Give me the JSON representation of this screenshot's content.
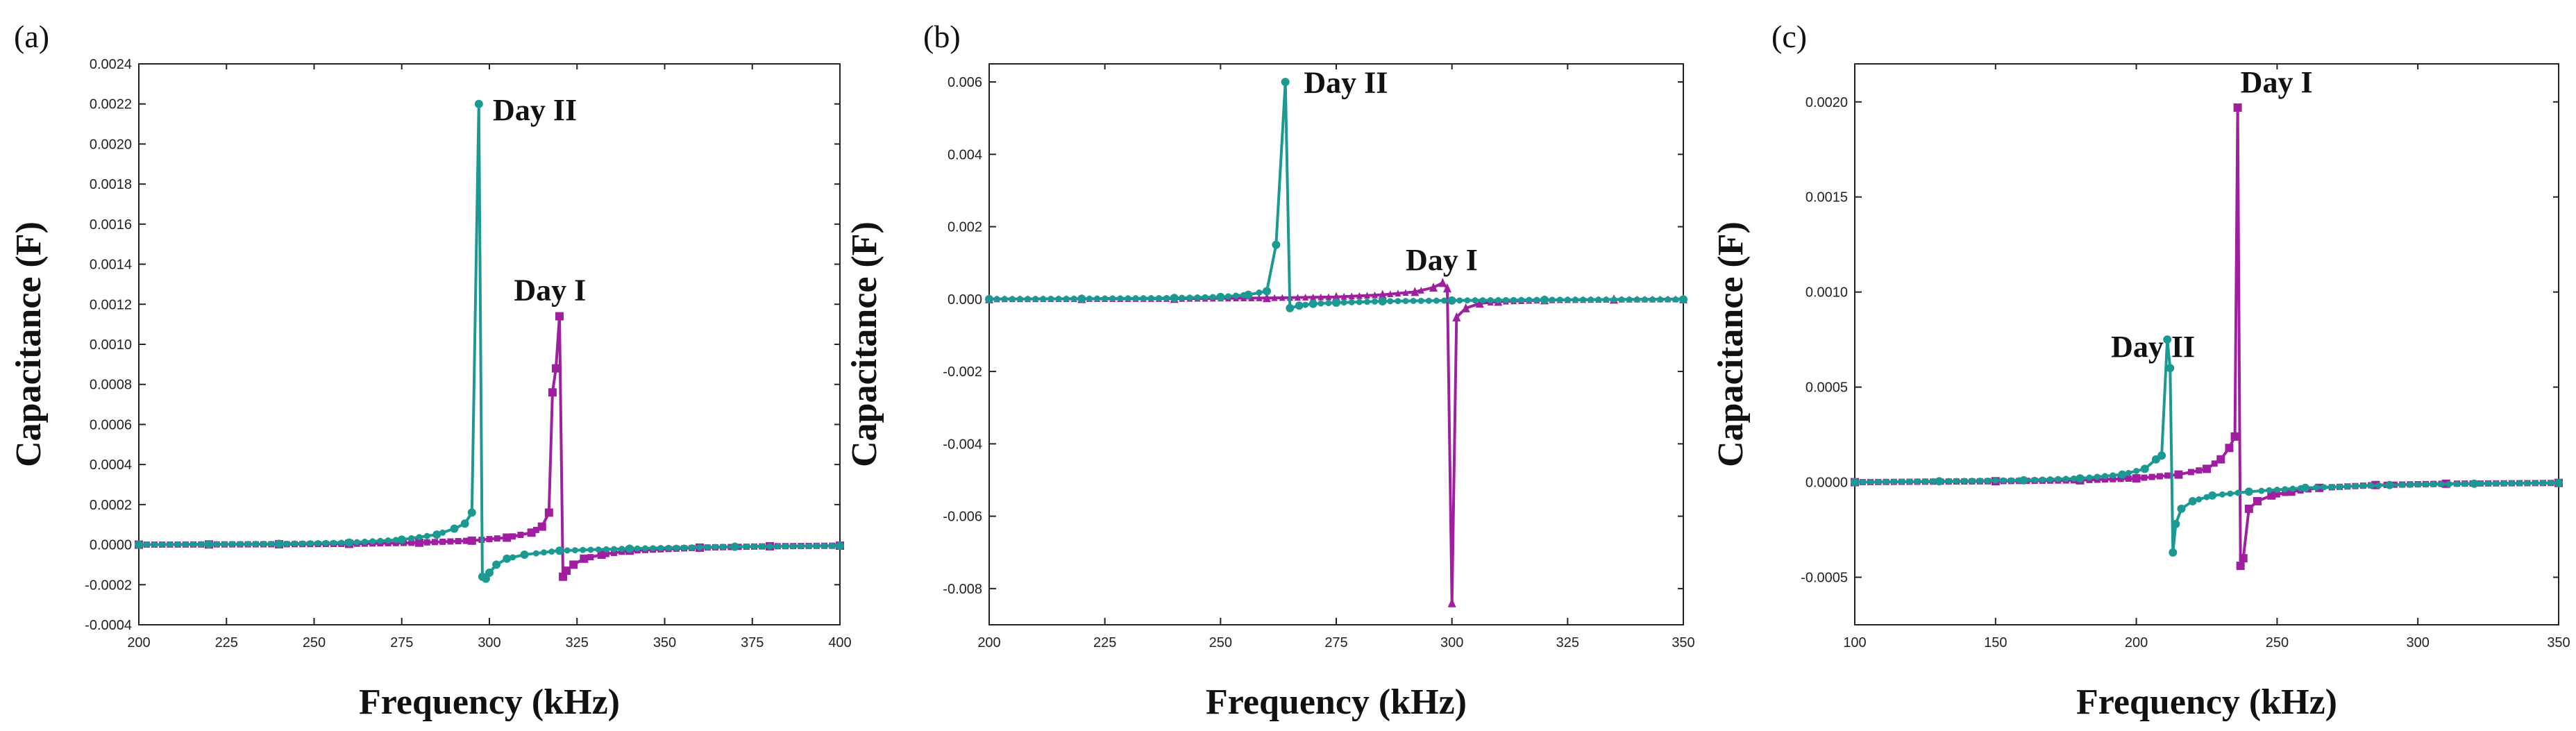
{
  "colors": {
    "day1": "#a01fa0",
    "day2": "#1a9a92",
    "axis": "#222222"
  },
  "chart_data": [
    {
      "type": "line",
      "panel_label": "(a)",
      "xlabel": "Frequency (kHz)",
      "ylabel": "Capacitance (F)",
      "xlim": [
        200,
        400
      ],
      "ylim": [
        -0.0004,
        0.0024
      ],
      "xticks": [
        200,
        225,
        250,
        275,
        300,
        325,
        350,
        375,
        400
      ],
      "xtick_labels": [
        "200",
        "225",
        "250",
        "275",
        "300",
        "325",
        "350",
        "375",
        "400"
      ],
      "yticks": [
        -0.0004,
        -0.0002,
        0,
        0.0002,
        0.0004,
        0.0006,
        0.0008,
        0.001,
        0.0012,
        0.0014,
        0.0016,
        0.0018,
        0.002,
        0.0022,
        0.0024
      ],
      "ytick_labels": [
        "-0.0004",
        "-0.0002",
        "0.0000",
        "0.0002",
        "0.0004",
        "0.0006",
        "0.0008",
        "0.0010",
        "0.0012",
        "0.0014",
        "0.0016",
        "0.0018",
        "0.0020",
        "0.0022",
        "0.0024"
      ],
      "series": [
        {
          "name": "Day I",
          "marker": "square",
          "points": [
            [
              200,
              0.0
            ],
            [
              220,
              1e-06
            ],
            [
              240,
              2e-06
            ],
            [
              260,
              4e-06
            ],
            [
              280,
              1e-05
            ],
            [
              295,
              2e-05
            ],
            [
              305,
              3.5e-05
            ],
            [
              312,
              6e-05
            ],
            [
              315,
              9e-05
            ],
            [
              317,
              0.00016
            ],
            [
              318,
              0.00076
            ],
            [
              319,
              0.00088
            ],
            [
              320,
              0.00114
            ],
            [
              321,
              -0.00016
            ],
            [
              322,
              -0.00013
            ],
            [
              324,
              -0.0001
            ],
            [
              327,
              -7e-05
            ],
            [
              332,
              -5e-05
            ],
            [
              340,
              -3e-05
            ],
            [
              360,
              -1.5e-05
            ],
            [
              380,
              -8e-06
            ],
            [
              400,
              -5e-06
            ]
          ]
        },
        {
          "name": "Day II",
          "marker": "circle",
          "points": [
            [
              200,
              0.0
            ],
            [
              220,
              2e-06
            ],
            [
              240,
              4e-06
            ],
            [
              260,
              1e-05
            ],
            [
              275,
              2.5e-05
            ],
            [
              285,
              5e-05
            ],
            [
              290,
              8e-05
            ],
            [
              293,
              0.000105
            ],
            [
              295,
              0.00016
            ],
            [
              297,
              0.0022
            ],
            [
              298,
              -0.00016
            ],
            [
              299,
              -0.00017
            ],
            [
              300,
              -0.00014
            ],
            [
              302,
              -0.0001
            ],
            [
              305,
              -7e-05
            ],
            [
              310,
              -5e-05
            ],
            [
              320,
              -3e-05
            ],
            [
              340,
              -2e-05
            ],
            [
              370,
              -1e-05
            ],
            [
              400,
              -6e-06
            ]
          ]
        }
      ],
      "annotations": [
        {
          "text": "Day II",
          "x": 301,
          "y": 0.00212
        },
        {
          "text": "Day I",
          "x": 307,
          "y": 0.00122
        }
      ]
    },
    {
      "type": "line",
      "panel_label": "(b)",
      "xlabel": "Frequency (kHz)",
      "ylabel": "Capacitance (F)",
      "xlim": [
        200,
        350
      ],
      "ylim": [
        -0.009,
        0.0065
      ],
      "xticks": [
        200,
        225,
        250,
        275,
        300,
        325,
        350
      ],
      "xtick_labels": [
        "200",
        "225",
        "250",
        "275",
        "300",
        "325",
        "350"
      ],
      "yticks": [
        -0.008,
        -0.006,
        -0.004,
        -0.002,
        0,
        0.002,
        0.004,
        0.006
      ],
      "ytick_labels": [
        "-0.008",
        "-0.006",
        "-0.004",
        "-0.002",
        "0.000",
        "0.002",
        "0.004",
        "0.006"
      ],
      "series": [
        {
          "name": "Day I",
          "marker": "triangle",
          "points": [
            [
              200,
              0.0
            ],
            [
              220,
              5e-06
            ],
            [
              240,
              1e-05
            ],
            [
              260,
              3e-05
            ],
            [
              275,
              6e-05
            ],
            [
              285,
              0.00012
            ],
            [
              292,
              0.0002
            ],
            [
              296,
              0.00032
            ],
            [
              298,
              0.00045
            ],
            [
              299,
              0.0003
            ],
            [
              300,
              -0.0084
            ],
            [
              301,
              -0.0005
            ],
            [
              303,
              -0.00025
            ],
            [
              306,
              -0.00012
            ],
            [
              310,
              -7e-05
            ],
            [
              320,
              -3e-05
            ],
            [
              335,
              -1e-05
            ],
            [
              350,
              0.0
            ]
          ]
        },
        {
          "name": "Day II",
          "marker": "circle",
          "points": [
            [
              200,
              0.0
            ],
            [
              220,
              1e-05
            ],
            [
              240,
              3e-05
            ],
            [
              250,
              6e-05
            ],
            [
              256,
              0.00012
            ],
            [
              260,
              0.00022
            ],
            [
              262,
              0.0015
            ],
            [
              264,
              0.006
            ],
            [
              265,
              -0.00025
            ],
            [
              267,
              -0.00018
            ],
            [
              270,
              -0.00013
            ],
            [
              275,
              -0.0001
            ],
            [
              285,
              -6e-05
            ],
            [
              300,
              -4e-05
            ],
            [
              320,
              -2e-05
            ],
            [
              350,
              -1e-05
            ]
          ]
        }
      ],
      "annotations": [
        {
          "text": "Day II",
          "x": 268,
          "y": 0.0057
        },
        {
          "text": "Day I",
          "x": 290,
          "y": 0.0008
        }
      ]
    },
    {
      "type": "line",
      "panel_label": "(c)",
      "xlabel": "Frequency (kHz)",
      "ylabel": "Capacitance (F)",
      "xlim": [
        100,
        350
      ],
      "ylim": [
        -0.00075,
        0.0022
      ],
      "xticks": [
        100,
        150,
        200,
        250,
        300,
        350
      ],
      "xtick_labels": [
        "100",
        "150",
        "200",
        "250",
        "300",
        "350"
      ],
      "yticks": [
        -0.0005,
        0,
        0.0005,
        0.001,
        0.0015,
        0.002
      ],
      "ytick_labels": [
        "-0.0005",
        "0.0000",
        "0.0005",
        "0.0010",
        "0.0015",
        "0.0020"
      ],
      "series": [
        {
          "name": "Day I",
          "marker": "square",
          "points": [
            [
              100,
              0.0
            ],
            [
              150,
              5e-06
            ],
            [
              180,
              1e-05
            ],
            [
              200,
              2e-05
            ],
            [
              215,
              4e-05
            ],
            [
              225,
              7e-05
            ],
            [
              230,
              0.00012
            ],
            [
              233,
              0.00018
            ],
            [
              235,
              0.00024
            ],
            [
              236,
              0.00197
            ],
            [
              237,
              -0.00044
            ],
            [
              238,
              -0.0004
            ],
            [
              240,
              -0.00014
            ],
            [
              243,
              -0.0001
            ],
            [
              248,
              -7e-05
            ],
            [
              255,
              -5e-05
            ],
            [
              265,
              -3e-05
            ],
            [
              285,
              -1.5e-05
            ],
            [
              310,
              -8e-06
            ],
            [
              350,
              -4e-06
            ]
          ]
        },
        {
          "name": "Day II",
          "marker": "circle",
          "points": [
            [
              100,
              0.0
            ],
            [
              130,
              5e-06
            ],
            [
              160,
              1e-05
            ],
            [
              180,
              2e-05
            ],
            [
              195,
              4e-05
            ],
            [
              203,
              7e-05
            ],
            [
              207,
              0.00012
            ],
            [
              209,
              0.00014
            ],
            [
              211,
              0.00075
            ],
            [
              212,
              0.0006
            ],
            [
              213,
              -0.00037
            ],
            [
              214,
              -0.00022
            ],
            [
              216,
              -0.00014
            ],
            [
              220,
              -0.0001
            ],
            [
              227,
              -7e-05
            ],
            [
              240,
              -5e-05
            ],
            [
              260,
              -3e-05
            ],
            [
              290,
              -1.5e-05
            ],
            [
              320,
              -8e-06
            ],
            [
              350,
              -4e-06
            ]
          ]
        }
      ],
      "annotations": [
        {
          "text": "Day II",
          "x": 191,
          "y": 0.00066
        },
        {
          "text": "Day I",
          "x": 237,
          "y": 0.00205
        }
      ]
    }
  ]
}
